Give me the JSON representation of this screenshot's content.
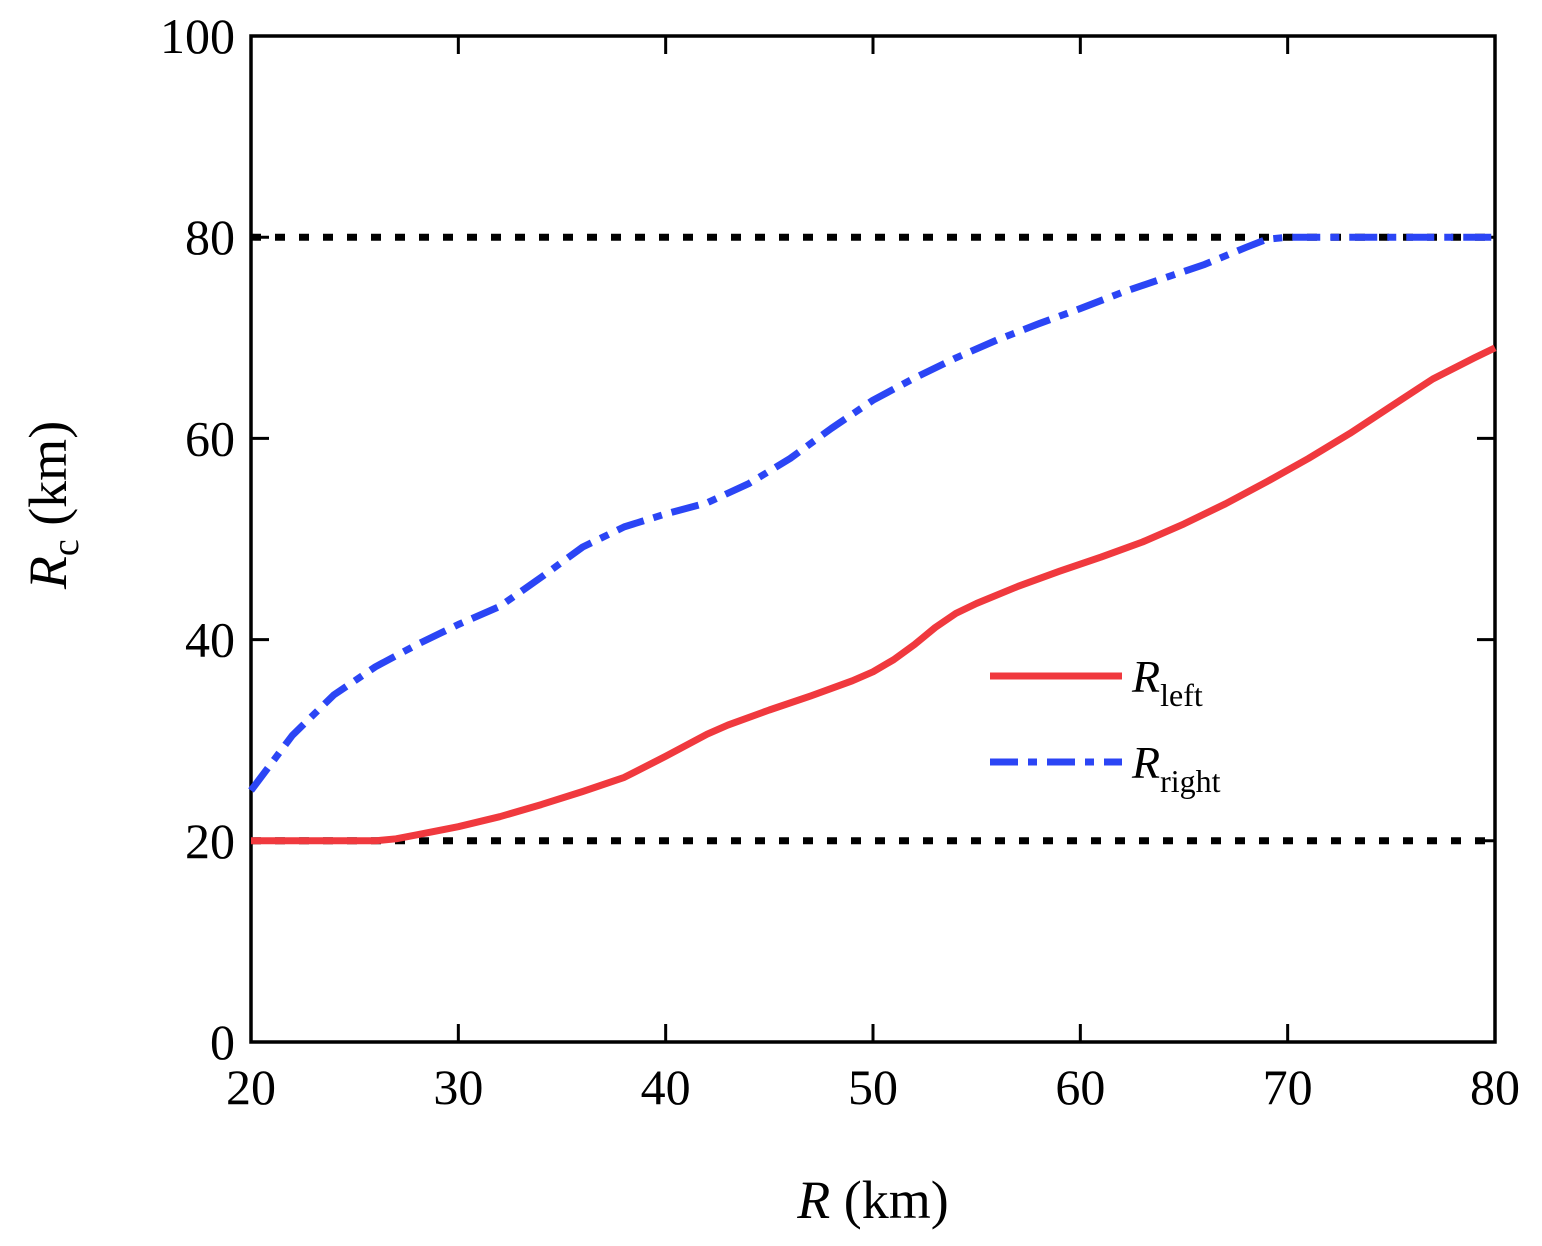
{
  "chart_data": {
    "type": "line",
    "xlabel": {
      "var": "R",
      "unit": "(km)"
    },
    "ylabel": {
      "var": "R",
      "sub": "c",
      "unit": "(km)"
    },
    "xlim": [
      20,
      80
    ],
    "ylim": [
      0,
      100
    ],
    "xticks": [
      20,
      30,
      40,
      50,
      60,
      70,
      80
    ],
    "yticks": [
      0,
      20,
      40,
      60,
      80,
      100
    ],
    "grid": false,
    "legend_position": "center-right",
    "series": [
      {
        "name": "R_left",
        "label_var": "R",
        "label_sub": "left",
        "color": "#f0393e",
        "style": "solid",
        "x": [
          20,
          22,
          24,
          26,
          27,
          28,
          30,
          32,
          34,
          36,
          38,
          40,
          42,
          43,
          45,
          47,
          49,
          50,
          51,
          52,
          53,
          54,
          55,
          57,
          59,
          61,
          63,
          65,
          67,
          69,
          71,
          73,
          75,
          77,
          79,
          80
        ],
        "y": [
          20,
          20,
          20,
          20,
          20.2,
          20.6,
          21.4,
          22.4,
          23.6,
          24.9,
          26.3,
          28.4,
          30.6,
          31.5,
          33,
          34.4,
          35.9,
          36.8,
          38,
          39.5,
          41.2,
          42.6,
          43.6,
          45.3,
          46.8,
          48.2,
          49.7,
          51.5,
          53.5,
          55.7,
          58,
          60.5,
          63.2,
          65.9,
          68,
          69
        ]
      },
      {
        "name": "R_right",
        "label_var": "R",
        "label_sub": "right",
        "color": "#2b45f5",
        "style": "dashdot",
        "x": [
          20,
          22,
          24,
          26,
          28,
          30,
          32,
          34,
          36,
          38,
          40,
          42,
          44,
          46,
          48,
          50,
          52,
          54,
          56,
          58,
          60,
          62,
          64,
          66,
          68,
          69,
          70,
          72,
          74,
          76,
          78,
          80
        ],
        "y": [
          25,
          30.5,
          34.5,
          37.3,
          39.5,
          41.5,
          43.3,
          46.2,
          49.2,
          51.2,
          52.5,
          53.6,
          55.5,
          58,
          61,
          63.8,
          66,
          68,
          69.8,
          71.4,
          72.9,
          74.5,
          75.9,
          77.3,
          79,
          79.8,
          80,
          80,
          80,
          80,
          80,
          80
        ]
      },
      {
        "name": "upper-bound",
        "color": "#000000",
        "style": "dotted",
        "x": [
          20,
          80
        ],
        "y": [
          80,
          80
        ]
      },
      {
        "name": "lower-bound",
        "color": "#000000",
        "style": "dotted",
        "x": [
          20,
          80
        ],
        "y": [
          20,
          20
        ]
      }
    ]
  }
}
